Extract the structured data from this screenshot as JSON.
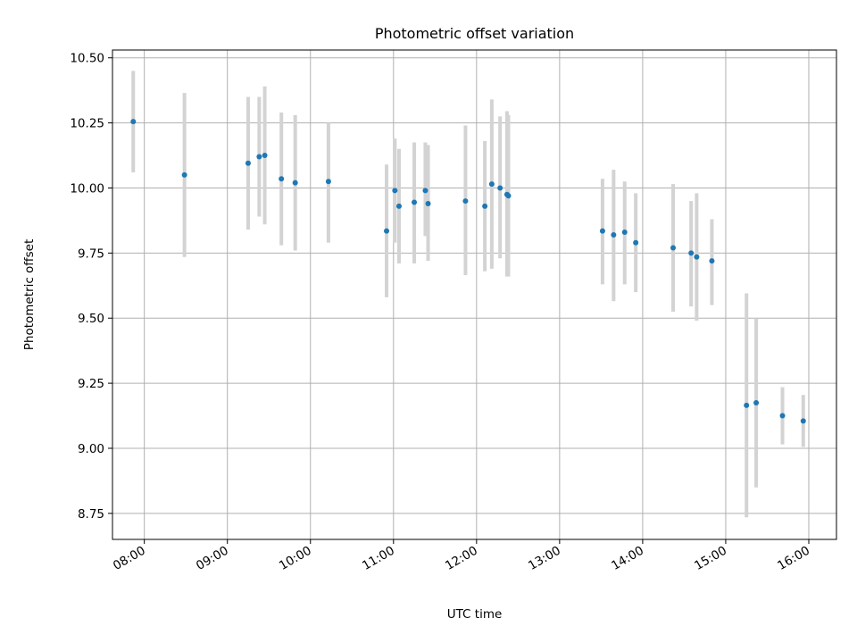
{
  "chart_data": {
    "type": "scatter",
    "title": "Photometric offset variation",
    "xlabel": "UTC time",
    "ylabel": "Photometric offset",
    "grid": true,
    "x_axis_type": "time",
    "xlim": [
      "07:37",
      "16:20"
    ],
    "ylim": [
      8.65,
      10.53
    ],
    "xticks": [
      "08:00",
      "09:00",
      "10:00",
      "11:00",
      "12:00",
      "13:00",
      "14:00",
      "15:00",
      "16:00"
    ],
    "yticks": [
      8.75,
      9.0,
      9.25,
      9.5,
      9.75,
      10.0,
      10.25,
      10.5
    ],
    "ytick_labels": [
      "8.75",
      "9.00",
      "9.25",
      "9.50",
      "9.75",
      "10.00",
      "10.25",
      "10.50"
    ],
    "colors": {
      "points": "#1f77b4",
      "errorbars": "#d3d3d3"
    },
    "series": [
      {
        "points": [
          {
            "x": "07:52",
            "y": 10.255,
            "ylo": 10.06,
            "yhi": 10.45
          },
          {
            "x": "08:29",
            "y": 10.05,
            "ylo": 9.735,
            "yhi": 10.365
          },
          {
            "x": "09:15",
            "y": 10.095,
            "ylo": 9.84,
            "yhi": 10.35
          },
          {
            "x": "09:23",
            "y": 10.12,
            "ylo": 9.89,
            "yhi": 10.35
          },
          {
            "x": "09:27",
            "y": 10.125,
            "ylo": 9.86,
            "yhi": 10.39
          },
          {
            "x": "09:39",
            "y": 10.035,
            "ylo": 9.78,
            "yhi": 10.29
          },
          {
            "x": "09:49",
            "y": 10.02,
            "ylo": 9.76,
            "yhi": 10.28
          },
          {
            "x": "10:13",
            "y": 10.025,
            "ylo": 9.79,
            "yhi": 10.25
          },
          {
            "x": "10:55",
            "y": 9.835,
            "ylo": 9.58,
            "yhi": 10.09
          },
          {
            "x": "11:01",
            "y": 9.99,
            "ylo": 9.79,
            "yhi": 10.19
          },
          {
            "x": "11:04",
            "y": 9.93,
            "ylo": 9.71,
            "yhi": 10.15
          },
          {
            "x": "11:15",
            "y": 9.945,
            "ylo": 9.71,
            "yhi": 10.175
          },
          {
            "x": "11:23",
            "y": 9.99,
            "ylo": 9.815,
            "yhi": 10.175
          },
          {
            "x": "11:25",
            "y": 9.94,
            "ylo": 9.72,
            "yhi": 10.165
          },
          {
            "x": "11:52",
            "y": 9.95,
            "ylo": 9.665,
            "yhi": 10.24
          },
          {
            "x": "12:06",
            "y": 9.93,
            "ylo": 9.68,
            "yhi": 10.18
          },
          {
            "x": "12:11",
            "y": 10.015,
            "ylo": 9.69,
            "yhi": 10.34
          },
          {
            "x": "12:17",
            "y": 10.0,
            "ylo": 9.73,
            "yhi": 10.275
          },
          {
            "x": "12:22",
            "y": 9.975,
            "ylo": 9.66,
            "yhi": 10.295
          },
          {
            "x": "12:23",
            "y": 9.97,
            "ylo": 9.66,
            "yhi": 10.28
          },
          {
            "x": "13:31",
            "y": 9.835,
            "ylo": 9.63,
            "yhi": 10.035
          },
          {
            "x": "13:39",
            "y": 9.82,
            "ylo": 9.565,
            "yhi": 10.07
          },
          {
            "x": "13:47",
            "y": 9.83,
            "ylo": 9.63,
            "yhi": 10.025
          },
          {
            "x": "13:55",
            "y": 9.79,
            "ylo": 9.6,
            "yhi": 9.98
          },
          {
            "x": "14:22",
            "y": 9.77,
            "ylo": 9.525,
            "yhi": 10.015
          },
          {
            "x": "14:35",
            "y": 9.75,
            "ylo": 9.545,
            "yhi": 9.95
          },
          {
            "x": "14:39",
            "y": 9.735,
            "ylo": 9.49,
            "yhi": 9.98
          },
          {
            "x": "14:50",
            "y": 9.72,
            "ylo": 9.55,
            "yhi": 9.88
          },
          {
            "x": "15:15",
            "y": 9.165,
            "ylo": 8.735,
            "yhi": 9.595
          },
          {
            "x": "15:22",
            "y": 9.175,
            "ylo": 8.85,
            "yhi": 9.5
          },
          {
            "x": "15:41",
            "y": 9.125,
            "ylo": 9.015,
            "yhi": 9.235
          },
          {
            "x": "15:56",
            "y": 9.105,
            "ylo": 9.005,
            "yhi": 9.205
          }
        ]
      }
    ]
  }
}
